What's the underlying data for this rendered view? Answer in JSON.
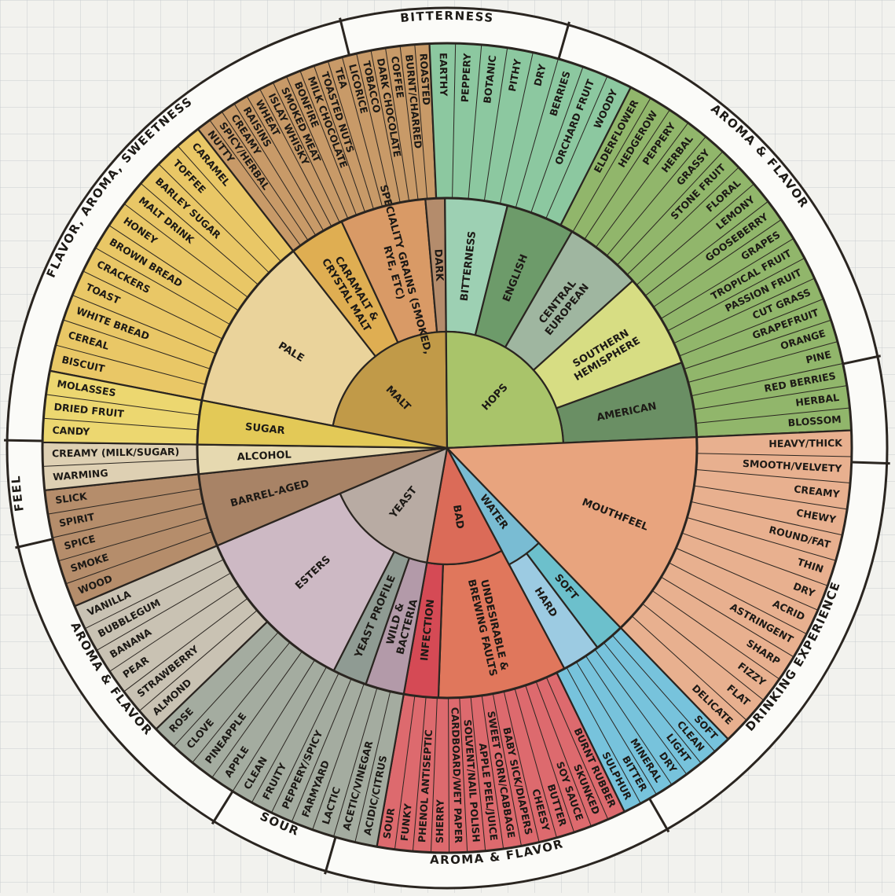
{
  "ring_labels": [
    {
      "text": "BITTERNESS",
      "a0": -14,
      "a1": 14
    },
    {
      "text": "AROMA & FLAVOR",
      "a0": 16,
      "a1": 78
    },
    {
      "text": "DRINKING EXPERIENCE",
      "a0": 92,
      "a1": 150
    },
    {
      "text": "AROMA & FLAVOR",
      "a0": 150,
      "a1": 196
    },
    {
      "text": "SOUR",
      "a0": 196,
      "a1": 212
    },
    {
      "text": "AROMA & FLAVOR",
      "a0": 214,
      "a1": 257
    },
    {
      "text": "FEEL",
      "a0": 257,
      "a1": 271
    },
    {
      "text": "FLAVOR, AROMA, SWEETNESS",
      "a0": 272,
      "a1": 345
    }
  ],
  "core": [
    {
      "label": "MALT",
      "a0": 270.8,
      "a1": 359.5,
      "color": "#c19a48"
    },
    {
      "label": "HOPS",
      "a0": 359.5,
      "a1": 87.5,
      "color": "#a9c46a"
    },
    {
      "label": "MOUTHFEEL",
      "a0": 87.5,
      "a1": 136,
      "color": "#e8a47e"
    },
    {
      "label": "WATER",
      "a0": 136,
      "a1": 152,
      "color": "#79bcd3"
    },
    {
      "label": "BAD",
      "a0": 152,
      "a1": 190,
      "color": "#db6b58"
    },
    {
      "label": "YEAST",
      "a0": 190,
      "a1": 247,
      "color": "#b8aba3"
    },
    {
      "label": "BARREL-AGED",
      "a0": 247,
      "a1": 264,
      "color": "#a88366"
    },
    {
      "label": "ALCOHOL",
      "a0": 264,
      "a1": 270.8,
      "color": "#e6d9b0"
    },
    {
      "label": "SUGAR",
      "a0": 270.8,
      "a1": 281,
      "color": "#e3c957"
    }
  ],
  "middle": [
    {
      "label": "PALE",
      "a0": 281,
      "a1": 322,
      "color": "#ead39b"
    },
    {
      "label": "CARAMALT & CRYSTAL MALT",
      "a0": 322,
      "a1": 335,
      "color": "#dfae52"
    },
    {
      "label": "SPECIALITY GRAINS (SMOKED, RYE, ETC)",
      "a0": 335,
      "a1": 355,
      "color": "#d99a66"
    },
    {
      "label": "DARK",
      "a0": 355,
      "a1": 359.5,
      "color": "#b48c6c"
    },
    {
      "label": "BITTERNESS",
      "a0": 359.5,
      "a1": 14,
      "color": "#9dd0b3"
    },
    {
      "label": "ENGLISH",
      "a0": 14,
      "a1": 30,
      "color": "#6d9b6a"
    },
    {
      "label": "CENTRAL EUROPEAN",
      "a0": 30,
      "a1": 48,
      "color": "#9fb6a0"
    },
    {
      "label": "SOUTHERN HEMISPHERE",
      "a0": 48,
      "a1": 70,
      "color": "#d7dd83"
    },
    {
      "label": "AMERICAN",
      "a0": 70,
      "a1": 87.5,
      "color": "#6a8f64"
    },
    {
      "label": "SOFT",
      "a0": 136,
      "a1": 143,
      "color": "#6cc0cc"
    },
    {
      "label": "HARD",
      "a0": 143,
      "a1": 152,
      "color": "#9ccbe2"
    },
    {
      "label": "UNDESIRABLE & BREWING FAULTS",
      "a0": 152,
      "a1": 182,
      "color": "#e0775c"
    },
    {
      "label": "INFECTION",
      "a0": 182,
      "a1": 190,
      "color": "#d54a55"
    },
    {
      "label": "WILD & BACTERIA",
      "a0": 190,
      "a1": 199,
      "color": "#b39aa9"
    },
    {
      "label": "YEAST PROFILE",
      "a0": 199,
      "a1": 207,
      "color": "#8f9b93"
    },
    {
      "label": "ESTERS",
      "a0": 207,
      "a1": 247,
      "color": "#cdb9c4"
    }
  ],
  "outer_groups": [
    {
      "a0": 281,
      "a1": 322,
      "color": "#e9c766"
    },
    {
      "a0": 322,
      "a1": 357.5,
      "color": "#c89a68"
    },
    {
      "a0": 357.5,
      "a1": 27,
      "color": "#8cc8a0"
    },
    {
      "a0": 27,
      "a1": 87.5,
      "color": "#91b66b"
    },
    {
      "a0": 87.5,
      "a1": 136,
      "color": "#e8b08f"
    },
    {
      "a0": 136,
      "a1": 154,
      "color": "#77c3dc"
    },
    {
      "a0": 154,
      "a1": 190,
      "color": "#dd6a6e"
    },
    {
      "a0": 190,
      "a1": 226,
      "color": "#a4aca0"
    },
    {
      "a0": 226,
      "a1": 247,
      "color": "#c9c2b3"
    },
    {
      "a0": 247,
      "a1": 264,
      "color": "#b58d6b"
    },
    {
      "a0": 264,
      "a1": 270.8,
      "color": "#ded0b3"
    },
    {
      "a0": 270.8,
      "a1": 281,
      "color": "#ecd770"
    }
  ],
  "outer_labels": {
    "malt_dark": [
      "ROASTED",
      "BURNT/CHARRED",
      "COFFEE",
      "DARK CHOCOLATE",
      "TOBACCO",
      "LICORICE",
      "TEA",
      "TOASTED NUTS",
      "MILK CHOCOLATE",
      "BONFIRE",
      "SMOKED MEAT",
      "ISLAY WHISKY",
      "WHEAT",
      "RAISINS",
      "CREAMY",
      "SPICY/HERBAL",
      "NUTTY"
    ],
    "malt_pale": [
      "CARAMEL",
      "TOFFEE",
      "BARLEY SUGAR",
      "MALT DRINK",
      "HONEY",
      "BROWN BREAD",
      "CRACKERS",
      "TOAST",
      "WHITE BREAD",
      "CEREAL",
      "BISCUIT"
    ],
    "hops_a": [
      "EARTHY",
      "PEPPERY",
      "BOTANIC",
      "PITHY",
      "DRY",
      "BERRIES",
      "ORCHARD FRUIT",
      "WOODY"
    ],
    "hops_b": [
      "ELDERFLOWER",
      "HEDGEROW",
      "PEPPERY",
      "HERBAL",
      "GRASSY",
      "STONE FRUIT",
      "FLORAL",
      "LEMONY",
      "GOOSEBERRY",
      "GRAPES",
      "TROPICAL FRUIT",
      "PASSION FRUIT",
      "CUT GRASS",
      "GRAPEFRUIT",
      "ORANGE",
      "PINE",
      "RED BERRIES",
      "HERBAL",
      "BLOSSOM"
    ],
    "mouthfeel": [
      "HEAVY/THICK",
      "SMOOTH/VELVETY",
      "CREAMY",
      "CHEWY",
      "ROUND/FAT",
      "THIN",
      "DRY",
      "ACRID",
      "ASTRINGENT",
      "SHARP",
      "FIZZY",
      "FLAT",
      "DELICATE"
    ],
    "water": [
      "SOFT",
      "CLEAN",
      "LIGHT",
      "DRY",
      "MINERAL",
      "BITTER",
      "SULPHUR"
    ],
    "bad": [
      "BURNT RUBBER",
      "SKUNKED",
      "SOY SAUCE",
      "BUTTER",
      "CHEESY",
      "BABY SICK/DIAPERS",
      "SWEET CORN/CABBAGE",
      "APPLE PEEL/JUICE",
      "SOLVENT/NAIL POLISH",
      "CARDBOARD/WET PAPER",
      "SHERRY",
      "PHENOL ANTISEPTIC",
      "FUNKY",
      "SOUR"
    ],
    "sour": [
      "ACIDIC/CITRUS",
      "ACETIC/VINEGAR",
      "LACTIC",
      "FARMYARD",
      "PEPPERY/SPICY",
      "FRUITY",
      "CLEAN"
    ],
    "esters": [
      "APPLE",
      "PINEAPPLE",
      "CLOVE",
      "ROSE",
      "ALMOND",
      "STRAWBERRY",
      "PEAR",
      "BANANA",
      "BUBBLEGUM",
      "VANILLA"
    ],
    "barrel": [
      "WOOD",
      "SMOKE",
      "SPICE",
      "SPIRIT",
      "SLICK"
    ],
    "alcohol": [
      "WARMING",
      "CREAMY (MILK/SUGAR)"
    ],
    "sugar": [
      "CANDY",
      "DRIED FRUIT",
      "MOLASSES"
    ]
  }
}
